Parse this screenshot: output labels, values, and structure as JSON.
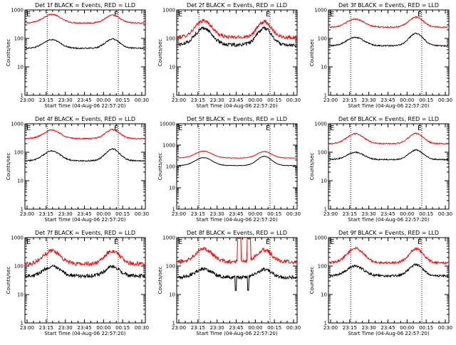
{
  "chart_data": [
    {
      "type": "line",
      "title": "Det 1f BLACK = Events, RED = LLD",
      "xlabel": "Start Time (04-Aug-06 22:57:20)",
      "ylabel": "Counts/sec",
      "ylim": [
        1,
        1000
      ],
      "yscale": "log",
      "x_ticks": [
        "23:00",
        "23:15",
        "23:30",
        "23:45",
        "00:00",
        "00:15",
        "00:30"
      ],
      "y_ticks": [
        "1",
        "10",
        "100",
        "1000"
      ],
      "markers": [
        "E",
        "E"
      ],
      "series": [
        {
          "color": "#ff0000",
          "base": 350,
          "peaks": [
            700,
            650
          ],
          "noise": 0.02
        },
        {
          "color": "#000000",
          "base": 45,
          "peaks": [
            90,
            95
          ],
          "noise": 0.02
        }
      ]
    },
    {
      "type": "line",
      "title": "Det 2f BLACK = Events, RED = LLD",
      "xlabel": "Start Time (04-Aug-06 22:57:20)",
      "ylabel": "Counts/sec",
      "ylim": [
        1,
        1000
      ],
      "yscale": "log",
      "x_ticks": [
        "23:00",
        "23:15",
        "23:30",
        "23:45",
        "00:00",
        "00:15",
        "00:30"
      ],
      "y_ticks": [
        "1",
        "10",
        "100",
        "1000"
      ],
      "markers": [
        "E",
        "E"
      ],
      "series": [
        {
          "color": "#ff0000",
          "base": 110,
          "peaks": [
            420,
            380
          ],
          "noise": 0.06
        },
        {
          "color": "#000000",
          "base": 60,
          "peaks": [
            230,
            230
          ],
          "noise": 0.06
        }
      ]
    },
    {
      "type": "line",
      "title": "Det 3f BLACK = Events, RED = LLD",
      "xlabel": "Start Time (04-Aug-06 22:57:20)",
      "ylabel": "Counts/sec",
      "ylim": [
        1,
        1000
      ],
      "yscale": "log",
      "x_ticks": [
        "23:00",
        "23:15",
        "23:30",
        "23:45",
        "00:00",
        "00:15",
        "00:30"
      ],
      "y_ticks": [
        "1",
        "10",
        "100",
        "1000"
      ],
      "markers": [
        "E",
        "E"
      ],
      "series": [
        {
          "color": "#ff0000",
          "base": 250,
          "peaks": [
            480,
            560
          ],
          "noise": 0.02
        },
        {
          "color": "#000000",
          "base": 55,
          "peaks": [
            110,
            150
          ],
          "noise": 0.02
        }
      ]
    },
    {
      "type": "line",
      "title": "Det 4f BLACK = Events, RED = LLD",
      "xlabel": "Start Time (04-Aug-06 22:57:20)",
      "ylabel": "Counts/sec",
      "ylim": [
        1,
        1000
      ],
      "yscale": "log",
      "x_ticks": [
        "23:00",
        "23:15",
        "23:30",
        "23:45",
        "00:00",
        "00:15",
        "00:30"
      ],
      "y_ticks": [
        "1",
        "10",
        "100",
        "1000"
      ],
      "markers": [
        "E",
        "E"
      ],
      "series": [
        {
          "color": "#ff0000",
          "base": 300,
          "peaks": [
            600,
            620
          ],
          "noise": 0.02
        },
        {
          "color": "#000000",
          "base": 50,
          "peaks": [
            110,
            130
          ],
          "noise": 0.02
        }
      ]
    },
    {
      "type": "line",
      "title": "Det 5f BLACK = Events, RED = LLD",
      "xlabel": "Start Time (04-Aug-06 22:57:20)",
      "ylabel": "Counts/sec",
      "ylim": [
        1,
        10000
      ],
      "yscale": "log",
      "x_ticks": [
        "23:00",
        "23:15",
        "23:30",
        "23:45",
        "00:00",
        "00:15",
        "00:30"
      ],
      "y_ticks": [
        "1",
        "10",
        "100",
        "1000",
        "10000"
      ],
      "markers": [
        "E",
        "E"
      ],
      "series": [
        {
          "color": "#ff0000",
          "base": 250,
          "peaks": [
            520,
            500
          ],
          "noise": 0.01
        },
        {
          "color": "#000000",
          "base": 110,
          "peaks": [
            260,
            300
          ],
          "noise": 0.01
        }
      ]
    },
    {
      "type": "line",
      "title": "Det 6f BLACK = Events, RED = LLD",
      "xlabel": "Start Time (04-Aug-06 22:57:20)",
      "ylabel": "Counts/sec",
      "ylim": [
        1,
        1000
      ],
      "yscale": "log",
      "x_ticks": [
        "23:00",
        "23:15",
        "23:30",
        "23:45",
        "00:00",
        "00:15",
        "00:30"
      ],
      "y_ticks": [
        "1",
        "10",
        "100",
        "1000"
      ],
      "markers": [
        "E",
        "E"
      ],
      "series": [
        {
          "color": "#ff0000",
          "base": 200,
          "peaks": [
            450,
            460
          ],
          "noise": 0.02
        },
        {
          "color": "#000000",
          "base": 55,
          "peaks": [
            100,
            120
          ],
          "noise": 0.02
        }
      ]
    },
    {
      "type": "line",
      "title": "Det 7f BLACK = Events, RED = LLD",
      "xlabel": "Start Time (04-Aug-06 22:57:20)",
      "ylabel": "Counts/sec",
      "ylim": [
        1,
        1000
      ],
      "yscale": "log",
      "x_ticks": [
        "23:00",
        "23:15",
        "23:30",
        "23:45",
        "00:00",
        "00:15",
        "00:30"
      ],
      "y_ticks": [
        "1",
        "10",
        "100",
        "1000"
      ],
      "markers": [
        "E",
        "E"
      ],
      "series": [
        {
          "color": "#ff0000",
          "base": 120,
          "peaks": [
            350,
            350
          ],
          "noise": 0.07
        },
        {
          "color": "#000000",
          "base": 45,
          "peaks": [
            95,
            95
          ],
          "noise": 0.06
        }
      ]
    },
    {
      "type": "line",
      "title": "Det 8f BLACK = Events, RED = LLD",
      "xlabel": "Start Time (04-Aug-06 22:57:20)",
      "ylabel": "Counts/sec",
      "ylim": [
        1,
        1000
      ],
      "yscale": "log",
      "x_ticks": [
        "23:00",
        "23:15",
        "23:30",
        "23:45",
        "00:00",
        "00:15",
        "00:30"
      ],
      "y_ticks": [
        "1",
        "10",
        "100",
        "1000"
      ],
      "markers": [
        "E",
        "E"
      ],
      "series": [
        {
          "color": "#ff0000",
          "base": 140,
          "peaks": [
            420,
            380
          ],
          "noise": 0.07,
          "spikes": [
            {
              "at": 0.52,
              "w": 0.03,
              "value": 1000
            },
            {
              "at": 0.6,
              "w": 0.03,
              "value": 1000
            }
          ]
        },
        {
          "color": "#000000",
          "base": 40,
          "peaks": [
            80,
            75
          ],
          "noise": 0.06,
          "dips": [
            {
              "at": 0.49,
              "value": 14
            },
            {
              "at": 0.595,
              "value": 14
            }
          ]
        }
      ]
    },
    {
      "type": "line",
      "title": "Det 9f BLACK = Events, RED = LLD",
      "xlabel": "Start Time (04-Aug-06 22:57:20)",
      "ylabel": "Counts/sec",
      "ylim": [
        1,
        1000
      ],
      "yscale": "log",
      "x_ticks": [
        "23:00",
        "23:15",
        "23:30",
        "23:45",
        "00:00",
        "00:15",
        "00:30"
      ],
      "y_ticks": [
        "1",
        "10",
        "100",
        "1000"
      ],
      "markers": [
        "E",
        "E"
      ],
      "series": [
        {
          "color": "#ff0000",
          "base": 130,
          "peaks": [
            420,
            400
          ],
          "noise": 0.04
        },
        {
          "color": "#000000",
          "base": 45,
          "peaks": [
            100,
            110
          ],
          "noise": 0.04
        }
      ]
    }
  ]
}
